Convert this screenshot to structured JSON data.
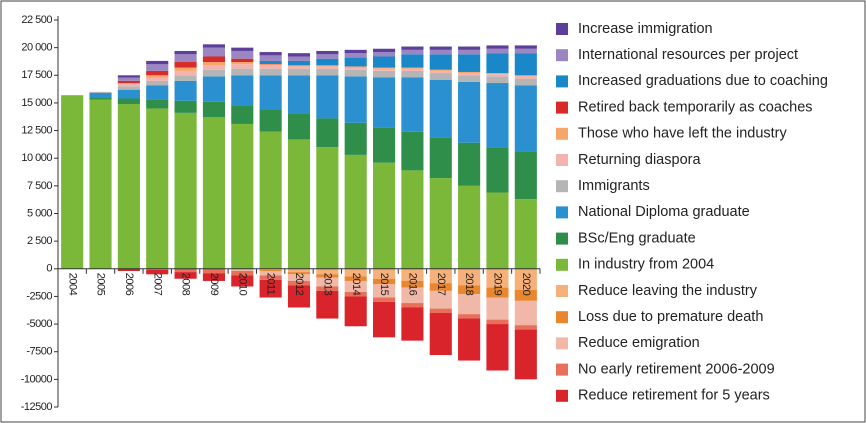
{
  "chart_data": {
    "type": "bar",
    "stacked": true,
    "categories": [
      "2004",
      "2005",
      "2006",
      "2007",
      "2008",
      "2009",
      "2010",
      "2011",
      "2012",
      "2013",
      "2014",
      "2015",
      "2016",
      "2017",
      "2018",
      "2019",
      "2020"
    ],
    "ylim": [
      -12500,
      22500
    ],
    "yticks": [
      {
        "value": 22500,
        "label": "22 500"
      },
      {
        "value": 20000,
        "label": "20 000"
      },
      {
        "value": 17500,
        "label": "17 500"
      },
      {
        "value": 15000,
        "label": "15 000"
      },
      {
        "value": 12500,
        "label": "12 500"
      },
      {
        "value": 10000,
        "label": "10 000"
      },
      {
        "value": 7500,
        "label": "7 500"
      },
      {
        "value": 5000,
        "label": "5 000"
      },
      {
        "value": 2500,
        "label": "2 500"
      },
      0,
      {
        "value": -2500,
        "label": "-2500"
      },
      {
        "value": -5000,
        "label": "-5000"
      },
      {
        "value": -7500,
        "label": "-7500"
      },
      {
        "value": -10000,
        "label": "-10000"
      },
      {
        "value": -12500,
        "label": "-12500"
      }
    ],
    "legend": "right",
    "series": [
      {
        "name": "Increase immigration",
        "color": "#5b3f9a",
        "values": [
          0,
          0,
          200,
          300,
          300,
          300,
          300,
          300,
          300,
          300,
          300,
          300,
          300,
          300,
          300,
          300,
          300
        ]
      },
      {
        "name": "International resources per project",
        "color": "#9b86c2",
        "values": [
          0,
          0,
          300,
          600,
          700,
          800,
          700,
          500,
          400,
          400,
          400,
          400,
          400,
          400,
          400,
          400,
          400
        ]
      },
      {
        "name": "Increased graduations due to coaching",
        "color": "#1a87c9",
        "values": [
          0,
          0,
          0,
          0,
          0,
          0,
          0,
          200,
          400,
          600,
          800,
          1000,
          1200,
          1400,
          1600,
          1800,
          2000
        ]
      },
      {
        "name": "Retired back temporarily as coaches",
        "color": "#d92a2a",
        "values": [
          0,
          0,
          200,
          400,
          500,
          500,
          300,
          100,
          0,
          0,
          0,
          0,
          0,
          0,
          0,
          0,
          0
        ]
      },
      {
        "name": "Those who have left the industry",
        "color": "#f7a66b",
        "values": [
          0,
          0,
          100,
          200,
          300,
          300,
          200,
          100,
          100,
          100,
          100,
          100,
          100,
          100,
          100,
          100,
          100
        ]
      },
      {
        "name": "Returning diaspora",
        "color": "#f3b3b0",
        "values": [
          0,
          0,
          200,
          300,
          400,
          400,
          400,
          300,
          200,
          200,
          200,
          200,
          200,
          200,
          200,
          200,
          200
        ]
      },
      {
        "name": "Immigrants",
        "color": "#b5b5b5",
        "values": [
          0,
          100,
          300,
          400,
          500,
          600,
          600,
          600,
          600,
          600,
          600,
          600,
          600,
          600,
          600,
          600,
          600
        ]
      },
      {
        "name": "National Diploma graduate",
        "color": "#2a90d0",
        "values": [
          0,
          400,
          800,
          1300,
          1800,
          2300,
          2700,
          3100,
          3500,
          3900,
          4200,
          4500,
          4900,
          5200,
          5500,
          5800,
          6000
        ]
      },
      {
        "name": "BSc/Eng graduate",
        "color": "#2f8f4a",
        "values": [
          0,
          200,
          500,
          800,
          1100,
          1400,
          1700,
          2000,
          2300,
          2600,
          2900,
          3200,
          3500,
          3700,
          3900,
          4100,
          4300
        ]
      },
      {
        "name": "In industry from 2004",
        "color": "#7bb83a",
        "values": [
          15700,
          15300,
          14900,
          14500,
          14100,
          13700,
          13100,
          12400,
          11700,
          11000,
          10300,
          9600,
          8900,
          8200,
          7500,
          6900,
          6300
        ]
      },
      {
        "name": "Reduce leaving the industry",
        "color": "#f6b07a",
        "values": [
          0,
          0,
          0,
          0,
          0,
          0,
          0,
          -100,
          -300,
          -500,
          -700,
          -900,
          -1100,
          -1300,
          -1500,
          -1700,
          -1900
        ]
      },
      {
        "name": "Loss due to premature death",
        "color": "#e9862e",
        "values": [
          0,
          0,
          0,
          0,
          0,
          0,
          0,
          -100,
          -200,
          -300,
          -400,
          -500,
          -600,
          -700,
          -800,
          -900,
          -1000
        ]
      },
      {
        "name": "Reduce emigration",
        "color": "#f1b8a8",
        "values": [
          0,
          0,
          0,
          0,
          0,
          0,
          -200,
          -400,
          -600,
          -800,
          -1000,
          -1200,
          -1400,
          -1600,
          -1800,
          -2000,
          -2200
        ]
      },
      {
        "name": "No early retirement 2006-2009",
        "color": "#e8705a",
        "values": [
          0,
          0,
          0,
          -100,
          -300,
          -400,
          -400,
          -400,
          -400,
          -400,
          -400,
          -400,
          -400,
          -400,
          -400,
          -400,
          -400
        ]
      },
      {
        "name": "Reduce retirement for 5 years",
        "color": "#d9242c",
        "values": [
          0,
          0,
          -200,
          -400,
          -600,
          -700,
          -1000,
          -1600,
          -2000,
          -2500,
          -2700,
          -3200,
          -3000,
          -3800,
          -3800,
          -4200,
          -4500
        ]
      }
    ]
  }
}
